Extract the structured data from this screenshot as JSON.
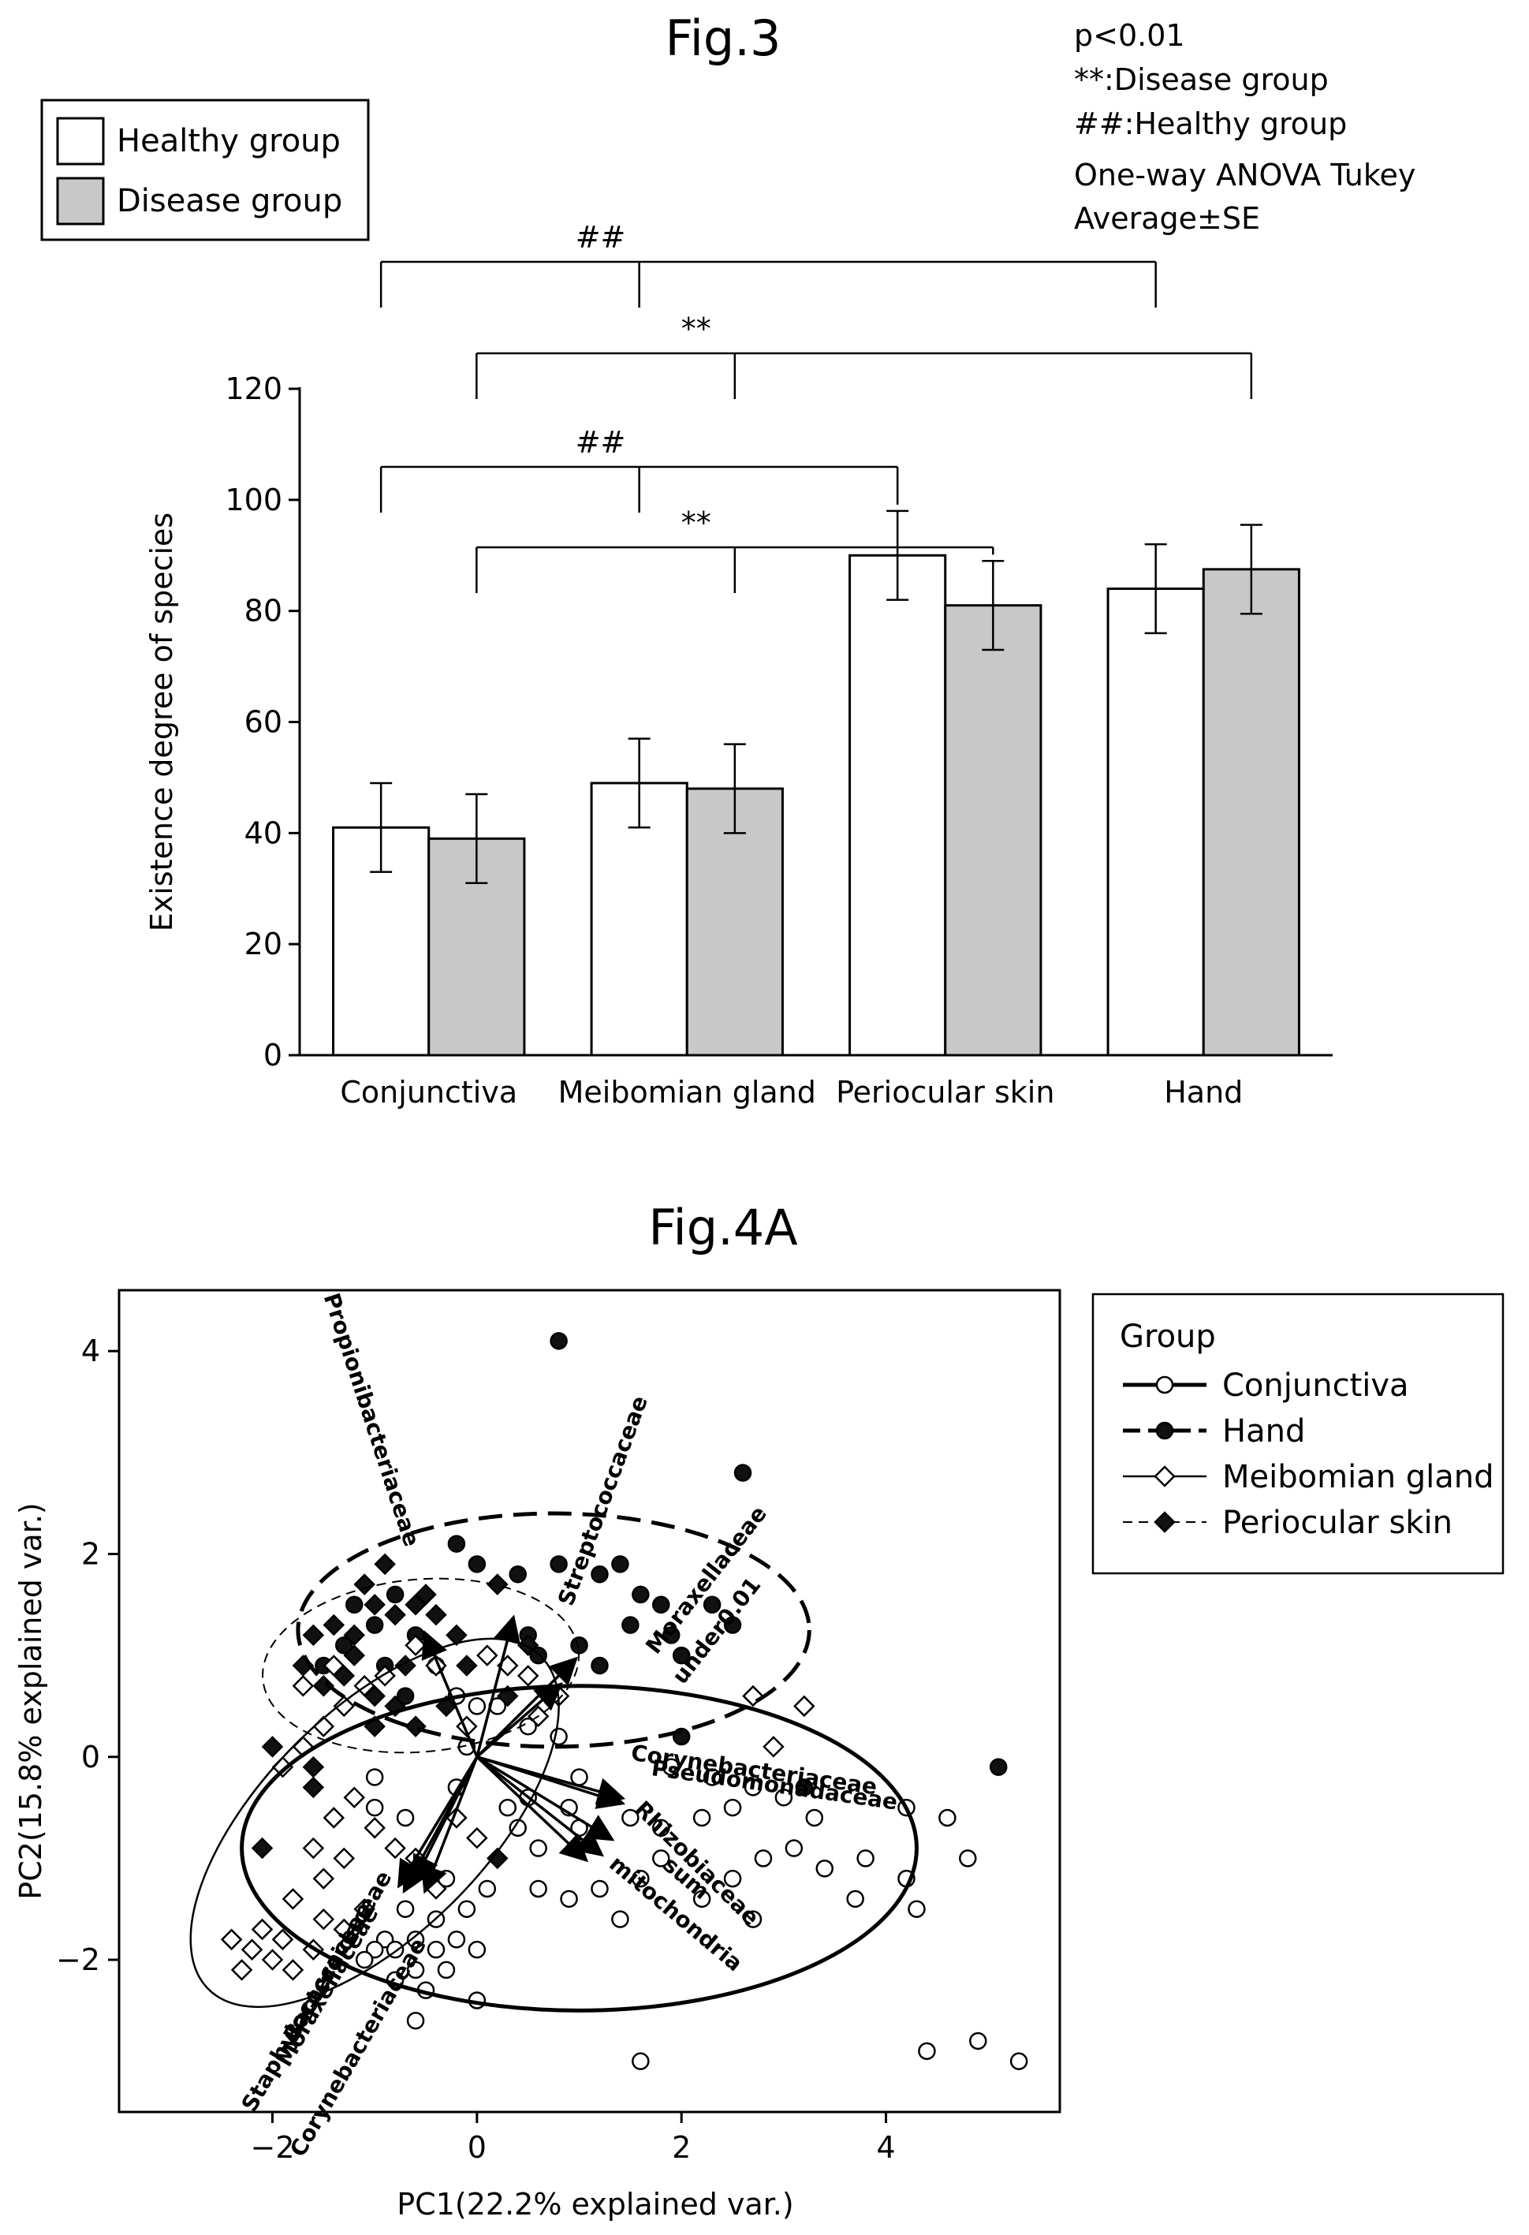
{
  "notes": {
    "p": "p<0.01",
    "disease": "**:Disease group",
    "healthy": "##:Healthy group",
    "test": "One-way ANOVA Tukey",
    "avg": "Average±SE"
  },
  "chart_data": [
    {
      "type": "bar",
      "title": "Fig.3",
      "ylabel": "Existence degree of species",
      "xlabel": "",
      "ylim": [
        0,
        120
      ],
      "yticks": [
        0,
        20,
        40,
        60,
        80,
        100,
        120
      ],
      "categories": [
        "Conjunctiva",
        "Meibomian gland",
        "Periocular skin",
        "Hand"
      ],
      "series": [
        {
          "name": "Healthy group",
          "color": "#ffffff",
          "values": [
            41,
            49,
            90,
            84
          ],
          "errors": [
            8,
            8,
            8,
            8
          ]
        },
        {
          "name": "Disease group",
          "color": "#c8c8c8",
          "values": [
            39,
            48,
            81,
            87.5
          ],
          "errors": [
            8,
            8,
            8,
            8
          ]
        }
      ],
      "legend_position": "top-left",
      "significance": [
        {
          "label": "##",
          "group": "Healthy group",
          "from": "Conjunctiva",
          "to": [
            "Meibomian gland",
            "Hand"
          ]
        },
        {
          "label": "**",
          "group": "Disease group",
          "from": "Conjunctiva",
          "to": [
            "Meibomian gland",
            "Hand"
          ]
        },
        {
          "label": "##",
          "group": "Healthy group",
          "from": "Conjunctiva",
          "to": [
            "Meibomian gland",
            "Periocular skin"
          ]
        },
        {
          "label": "**",
          "group": "Disease group",
          "from": "Conjunctiva",
          "to": [
            "Meibomian gland",
            "Periocular skin"
          ]
        }
      ]
    },
    {
      "type": "scatter",
      "title": "Fig.4A",
      "xlabel": "PC1(22.2% explained var.)",
      "ylabel": "PC2(15.8% explained var.)",
      "xlim": [
        -3.5,
        5.7
      ],
      "ylim": [
        -3.5,
        4.6
      ],
      "xticks": [
        -2,
        0,
        2,
        4
      ],
      "yticks": [
        -2,
        0,
        2,
        4
      ],
      "legend_title": "Group",
      "legend_position": "right",
      "groups": [
        {
          "name": "Conjunctiva",
          "marker": "open-circle",
          "line": "thick-solid",
          "ellipse": {
            "cx": 1.0,
            "cy": -0.9,
            "rx": 3.3,
            "ry": 1.6,
            "angle": 0
          },
          "points": [
            [
              -0.9,
              -1.8
            ],
            [
              -1.0,
              -1.9
            ],
            [
              -0.8,
              -1.9
            ],
            [
              -0.6,
              -1.8
            ],
            [
              -0.4,
              -1.9
            ],
            [
              -0.2,
              -1.8
            ],
            [
              0.0,
              -1.9
            ],
            [
              -0.6,
              -2.1
            ],
            [
              -0.3,
              -2.1
            ],
            [
              -0.5,
              -2.3
            ],
            [
              -1.1,
              -2.0
            ],
            [
              -0.7,
              -1.5
            ],
            [
              -0.4,
              -1.6
            ],
            [
              -0.1,
              -1.5
            ],
            [
              0.1,
              -1.3
            ],
            [
              -0.3,
              -1.2
            ],
            [
              -1.0,
              -0.2
            ],
            [
              -1.0,
              -0.5
            ],
            [
              -0.7,
              -0.6
            ],
            [
              -0.2,
              -0.3
            ],
            [
              0.3,
              -0.5
            ],
            [
              0.5,
              -0.4
            ],
            [
              -0.1,
              0.1
            ],
            [
              0.0,
              0.5
            ],
            [
              0.2,
              0.5
            ],
            [
              -0.2,
              0.6
            ],
            [
              0.5,
              0.3
            ],
            [
              0.8,
              0.2
            ],
            [
              1.0,
              -0.2
            ],
            [
              0.9,
              -0.5
            ],
            [
              0.4,
              -0.7
            ],
            [
              0.6,
              -0.9
            ],
            [
              1.0,
              -0.7
            ],
            [
              1.3,
              -0.4
            ],
            [
              1.5,
              -0.6
            ],
            [
              1.8,
              -0.7
            ],
            [
              2.2,
              -0.6
            ],
            [
              2.5,
              -0.5
            ],
            [
              1.8,
              -1.0
            ],
            [
              1.6,
              -1.2
            ],
            [
              1.2,
              -1.3
            ],
            [
              1.4,
              -1.6
            ],
            [
              0.6,
              -1.3
            ],
            [
              0.9,
              -1.4
            ],
            [
              1.9,
              -0.1
            ],
            [
              2.3,
              -0.2
            ],
            [
              2.7,
              -0.3
            ],
            [
              3.0,
              -0.4
            ],
            [
              3.3,
              -0.6
            ],
            [
              3.1,
              -0.9
            ],
            [
              2.8,
              -1.0
            ],
            [
              2.5,
              -1.2
            ],
            [
              2.2,
              -1.4
            ],
            [
              2.7,
              -1.6
            ],
            [
              3.4,
              -1.1
            ],
            [
              3.8,
              -1.0
            ],
            [
              3.7,
              -1.4
            ],
            [
              4.2,
              -1.2
            ],
            [
              4.3,
              -1.5
            ],
            [
              4.6,
              -0.6
            ],
            [
              4.8,
              -1.0
            ],
            [
              4.2,
              -0.5
            ],
            [
              1.6,
              -3.0
            ],
            [
              4.4,
              -2.9
            ],
            [
              4.9,
              -2.8
            ],
            [
              5.3,
              -3.0
            ],
            [
              0.0,
              -2.4
            ],
            [
              -0.6,
              -2.6
            ],
            [
              -0.8,
              -2.2
            ]
          ]
        },
        {
          "name": "Hand",
          "marker": "filled-circle",
          "line": "thick-dash",
          "ellipse": {
            "cx": 0.75,
            "cy": 1.25,
            "rx": 2.5,
            "ry": 1.15,
            "angle": 0
          },
          "points": [
            [
              0.8,
              4.1
            ],
            [
              2.6,
              2.8
            ],
            [
              -0.2,
              2.1
            ],
            [
              0.0,
              1.9
            ],
            [
              0.4,
              1.8
            ],
            [
              0.8,
              1.9
            ],
            [
              1.2,
              1.8
            ],
            [
              1.4,
              1.9
            ],
            [
              1.6,
              1.6
            ],
            [
              1.8,
              1.5
            ],
            [
              0.5,
              1.2
            ],
            [
              0.6,
              1.0
            ],
            [
              1.0,
              1.1
            ],
            [
              1.2,
              0.9
            ],
            [
              1.5,
              1.3
            ],
            [
              1.9,
              1.2
            ],
            [
              2.0,
              1.0
            ],
            [
              2.3,
              1.5
            ],
            [
              2.5,
              1.3
            ],
            [
              -1.2,
              1.5
            ],
            [
              -1.0,
              1.3
            ],
            [
              -0.8,
              1.6
            ],
            [
              -0.6,
              1.2
            ],
            [
              -1.3,
              1.1
            ],
            [
              -0.9,
              0.9
            ],
            [
              -0.4,
              0.9
            ],
            [
              -1.5,
              0.9
            ],
            [
              -0.7,
              0.6
            ],
            [
              5.1,
              -0.1
            ],
            [
              3.2,
              -0.3
            ],
            [
              2.0,
              0.2
            ]
          ]
        },
        {
          "name": "Meibomian gland",
          "marker": "open-diamond",
          "line": "thin-solid",
          "ellipse": {
            "cx": -1.0,
            "cy": -0.65,
            "rx": 2.3,
            "ry": 1.1,
            "angle": -45
          },
          "points": [
            [
              -2.4,
              -1.8
            ],
            [
              -2.2,
              -1.9
            ],
            [
              -2.0,
              -2.0
            ],
            [
              -2.3,
              -2.1
            ],
            [
              -2.1,
              -1.7
            ],
            [
              -1.9,
              -1.8
            ],
            [
              -1.8,
              -2.1
            ],
            [
              -1.6,
              -1.9
            ],
            [
              -1.5,
              -1.6
            ],
            [
              -1.3,
              -1.7
            ],
            [
              -1.1,
              -1.5
            ],
            [
              -1.8,
              -1.4
            ],
            [
              -1.6,
              -0.9
            ],
            [
              -1.4,
              -0.6
            ],
            [
              -1.3,
              -1.0
            ],
            [
              -1.5,
              -1.2
            ],
            [
              -1.2,
              -0.4
            ],
            [
              -1.0,
              -0.7
            ],
            [
              -0.8,
              -0.9
            ],
            [
              -0.6,
              -1.0
            ],
            [
              -0.4,
              -1.3
            ],
            [
              -0.2,
              -0.6
            ],
            [
              0.0,
              -0.8
            ],
            [
              -1.9,
              -0.1
            ],
            [
              -1.7,
              0.1
            ],
            [
              -1.5,
              0.3
            ],
            [
              -1.3,
              0.5
            ],
            [
              -1.1,
              0.7
            ],
            [
              -0.9,
              0.8
            ],
            [
              -1.7,
              0.7
            ],
            [
              -1.4,
              0.9
            ],
            [
              -0.6,
              1.1
            ],
            [
              -0.4,
              0.9
            ],
            [
              0.1,
              1.0
            ],
            [
              0.3,
              0.9
            ],
            [
              0.5,
              0.8
            ],
            [
              0.8,
              0.6
            ],
            [
              2.7,
              0.6
            ],
            [
              3.2,
              0.5
            ],
            [
              2.9,
              0.1
            ],
            [
              -0.1,
              0.3
            ],
            [
              0.6,
              0.4
            ]
          ]
        },
        {
          "name": "Periocular skin",
          "marker": "filled-diamond",
          "line": "thin-dash",
          "ellipse": {
            "cx": -0.55,
            "cy": 0.9,
            "rx": 1.55,
            "ry": 0.85,
            "angle": -5
          },
          "points": [
            [
              -1.6,
              1.2
            ],
            [
              -1.4,
              1.3
            ],
            [
              -1.2,
              1.0
            ],
            [
              -1.0,
              1.5
            ],
            [
              -0.8,
              1.4
            ],
            [
              -0.6,
              1.5
            ],
            [
              -0.4,
              1.4
            ],
            [
              -0.2,
              1.2
            ],
            [
              -1.5,
              0.7
            ],
            [
              -1.3,
              0.8
            ],
            [
              -1.0,
              0.6
            ],
            [
              -0.8,
              0.5
            ],
            [
              -0.6,
              0.3
            ],
            [
              -1.7,
              0.9
            ],
            [
              -1.1,
              1.7
            ],
            [
              -0.9,
              1.9
            ],
            [
              -0.5,
              1.6
            ],
            [
              0.2,
              1.7
            ],
            [
              0.5,
              1.1
            ],
            [
              -0.1,
              0.9
            ],
            [
              0.3,
              0.6
            ],
            [
              -2.0,
              0.1
            ],
            [
              -1.6,
              -0.1
            ],
            [
              -1.0,
              0.3
            ],
            [
              0.2,
              -1.0
            ],
            [
              -1.6,
              -0.3
            ],
            [
              -2.1,
              -0.9
            ],
            [
              -0.3,
              0.5
            ],
            [
              -1.2,
              1.2
            ],
            [
              -0.7,
              0.9
            ]
          ]
        }
      ],
      "loadings": [
        {
          "name": "Propionibacteriaceae",
          "dx": -0.5,
          "dy": 1.2,
          "label_x": -1.1,
          "label_y": 3.3,
          "label_angle": 72
        },
        {
          "name": "Streptococcaceae",
          "dx": 0.35,
          "dy": 1.35,
          "label_x": 1.3,
          "label_y": 2.5,
          "label_angle": -70
        },
        {
          "name": "Moraxellaceae",
          "dx": 0.95,
          "dy": 0.95,
          "label_x": 2.3,
          "label_y": 1.7,
          "label_angle": -52
        },
        {
          "name": "under0.01",
          "dx": 0.8,
          "dy": 0.7,
          "label_x": 2.4,
          "label_y": 1.2,
          "label_angle": -52
        },
        {
          "name": "Corynebacteriaceae",
          "dx": 1.4,
          "dy": -0.45,
          "label_x": 2.7,
          "label_y": -0.2,
          "label_angle": 8
        },
        {
          "name": "Pseudomonadaceae",
          "dx": 1.4,
          "dy": -0.4,
          "label_x": 2.9,
          "label_y": -0.35,
          "label_angle": 8
        },
        {
          "name": "sum",
          "dx": 1.3,
          "dy": -0.8,
          "label_x": 2.0,
          "label_y": -1.25,
          "label_angle": 40
        },
        {
          "name": "Rhizobiaceae",
          "dx": 1.2,
          "dy": -0.95,
          "label_x": 2.1,
          "label_y": -1.1,
          "label_angle": 45
        },
        {
          "name": "mitochondria",
          "dx": 1.05,
          "dy": -1.0,
          "label_x": 1.9,
          "label_y": -1.6,
          "label_angle": 40
        },
        {
          "name": "Staphylococcaceae",
          "dx": -0.75,
          "dy": -1.25,
          "label_x": -1.6,
          "label_y": -2.5,
          "label_angle": -60
        },
        {
          "name": "Moraxellaceae",
          "dx": -0.6,
          "dy": -1.2,
          "label_x": -1.4,
          "label_y": -2.3,
          "label_angle": -60
        },
        {
          "name": "Bacteroidaceae",
          "dx": -0.7,
          "dy": -1.3,
          "label_x": -1.3,
          "label_y": -2.0,
          "label_angle": -60
        },
        {
          "name": "Corynebacteriaceae",
          "dx": -0.5,
          "dy": -1.3,
          "label_x": -1.1,
          "label_y": -2.9,
          "label_angle": -60
        }
      ]
    }
  ]
}
